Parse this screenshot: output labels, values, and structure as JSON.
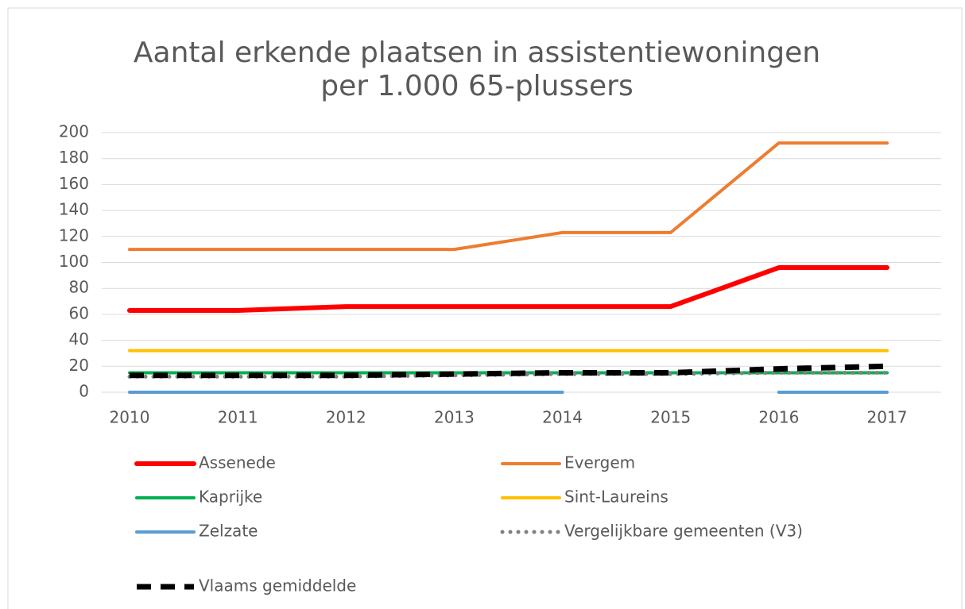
{
  "chart_data": {
    "type": "line",
    "title": [
      "Aantal erkende plaatsen in assistentiewoningen",
      "per 1.000 65-plussers"
    ],
    "categories": [
      "2010",
      "2011",
      "2012",
      "2013",
      "2014",
      "2015",
      "2016",
      "2017"
    ],
    "series": [
      {
        "name": "Assenede",
        "color": "#ff0000",
        "style": "solid",
        "values": [
          63,
          63,
          66,
          66,
          66,
          66,
          96,
          96
        ]
      },
      {
        "name": "Evergem",
        "color": "#ed7d31",
        "style": "solid",
        "values": [
          110,
          110,
          110,
          110,
          123,
          123,
          192,
          192
        ]
      },
      {
        "name": "Kaprijke",
        "color": "#00b050",
        "style": "solid",
        "values": [
          15,
          15,
          15,
          15,
          15,
          15,
          15,
          15
        ]
      },
      {
        "name": "Sint-Laureins",
        "color": "#ffc000",
        "style": "solid",
        "values": [
          32,
          32,
          32,
          32,
          32,
          32,
          32,
          32
        ]
      },
      {
        "name": "Zelzate",
        "color": "#5b9bd5",
        "style": "solid",
        "values": [
          0,
          0,
          0,
          0,
          0,
          null,
          0,
          0
        ]
      },
      {
        "name": "Vergelijkbare gemeenten (V3)",
        "color": "#808080",
        "style": "dotted",
        "values": [
          12,
          12,
          12,
          13,
          14,
          14,
          15,
          15
        ]
      },
      {
        "name": "Vlaams gemiddelde",
        "color": "#000000",
        "style": "dashed",
        "values": [
          13,
          13,
          13,
          14,
          15,
          15,
          18,
          20
        ]
      }
    ],
    "ylim": [
      0,
      200
    ],
    "yticks": [
      0,
      20,
      40,
      60,
      80,
      100,
      120,
      140,
      160,
      180,
      200
    ],
    "grid": true,
    "legend": "bottom"
  }
}
